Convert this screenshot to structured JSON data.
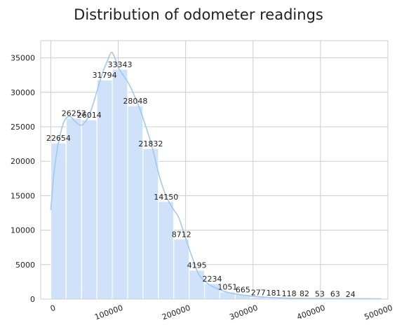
{
  "chart_data": {
    "type": "bar",
    "title": "Distribution of odometer readings",
    "xlabel": "",
    "ylabel": "",
    "bin_width": 22800,
    "bins_start": [
      0,
      22800,
      45600,
      68400,
      91200,
      114000,
      136800,
      159600,
      182400,
      205200,
      228000,
      250800,
      273600,
      296400,
      319200,
      342000,
      364800,
      387600,
      410400,
      433200,
      456000
    ],
    "values": [
      22654,
      26253,
      26014,
      31794,
      33343,
      28048,
      21832,
      14150,
      8712,
      4195,
      2234,
      1051,
      665,
      277,
      181,
      118,
      82,
      53,
      63,
      24,
      24
    ],
    "value_labels": [
      "22654",
      "26253",
      "26014",
      "31794",
      "33343",
      "28048",
      "21832",
      "14150",
      "8712",
      "4195",
      "2234",
      "1051",
      "665",
      "277",
      "181",
      "118",
      "82",
      "53",
      "63",
      "24",
      ""
    ],
    "kde": {
      "x": [
        0,
        5000,
        12000,
        20000,
        28000,
        36000,
        44000,
        52000,
        60000,
        68000,
        76000,
        84000,
        90000,
        95000,
        100000,
        108000,
        116000,
        124000,
        132000,
        140000,
        150000,
        160000,
        170000,
        180000,
        190000,
        200000,
        210000,
        220000,
        235000,
        250000,
        265000,
        280000,
        300000,
        320000,
        350000,
        380000,
        420000,
        460000,
        490000
      ],
      "y": [
        12900,
        18500,
        23000,
        25800,
        26500,
        25800,
        25200,
        25800,
        27500,
        30000,
        32600,
        34600,
        35800,
        35000,
        33600,
        32400,
        31200,
        29500,
        27600,
        25300,
        22200,
        18200,
        15200,
        13300,
        11800,
        8800,
        6000,
        3500,
        2100,
        1400,
        900,
        650,
        400,
        260,
        140,
        100,
        80,
        60,
        50
      ]
    },
    "xlim": [
      -15000,
      500000
    ],
    "ylim": [
      0,
      37500
    ],
    "xticks": [
      0,
      100000,
      200000,
      300000,
      400000,
      500000
    ],
    "xtick_labels": [
      "0",
      "100000",
      "200000",
      "300000",
      "400000",
      "500000"
    ],
    "yticks": [
      0,
      5000,
      10000,
      15000,
      20000,
      25000,
      30000,
      35000
    ],
    "ytick_labels": [
      "0",
      "5000",
      "10000",
      "15000",
      "20000",
      "25000",
      "30000",
      "35000"
    ],
    "grid": true,
    "colors": {
      "bar": "#cfe2fa",
      "line": "#a1c8ef",
      "grid": "#cccccc",
      "text": "#222222"
    }
  }
}
